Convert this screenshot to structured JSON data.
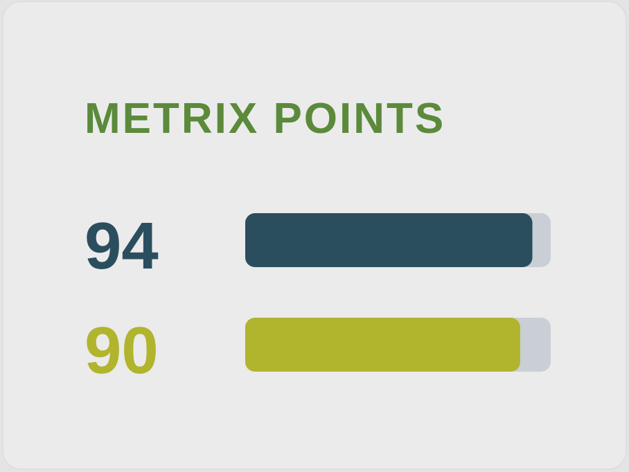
{
  "chart_data": {
    "type": "bar",
    "orientation": "horizontal",
    "title": "METRIX POINTS",
    "values": [
      94,
      90
    ],
    "colors": [
      "#2b4e5f",
      "#b1b42d"
    ],
    "track_color": "#c9cfd4",
    "title_color": "#5b8a3b",
    "xlim": [
      0,
      100
    ]
  }
}
